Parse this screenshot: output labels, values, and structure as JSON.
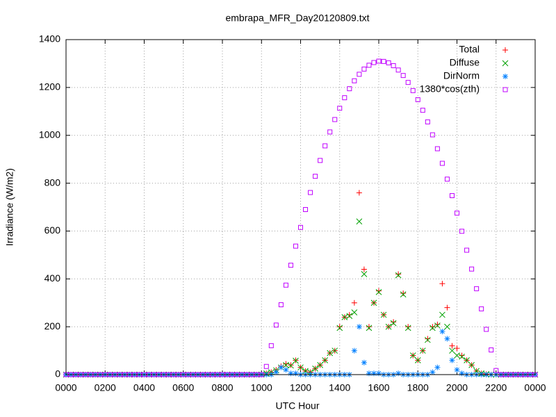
{
  "chart_data": {
    "type": "scatter",
    "title": "embrapa_MFR_Day20120809.txt",
    "xlabel": "UTC Hour",
    "ylabel": "Irradiance (W/m2)",
    "xlim": [
      0,
      24
    ],
    "ylim": [
      0,
      1400
    ],
    "xticks": [
      {
        "value": 0,
        "label": "0000"
      },
      {
        "value": 2,
        "label": "0200"
      },
      {
        "value": 4,
        "label": "0400"
      },
      {
        "value": 6,
        "label": "0600"
      },
      {
        "value": 8,
        "label": "0800"
      },
      {
        "value": 10,
        "label": "1000"
      },
      {
        "value": 12,
        "label": "1200"
      },
      {
        "value": 14,
        "label": "1400"
      },
      {
        "value": 16,
        "label": "1600"
      },
      {
        "value": 18,
        "label": "1800"
      },
      {
        "value": 20,
        "label": "2000"
      },
      {
        "value": 22,
        "label": "2200"
      },
      {
        "value": 24,
        "label": "0000"
      }
    ],
    "yticks": [
      0,
      200,
      400,
      600,
      800,
      1000,
      1200,
      1400
    ],
    "grid": true,
    "legend": "top-right",
    "x": [
      0,
      0.25,
      0.5,
      0.75,
      1,
      1.25,
      1.5,
      1.75,
      2,
      2.25,
      2.5,
      2.75,
      3,
      3.25,
      3.5,
      3.75,
      4,
      4.25,
      4.5,
      4.75,
      5,
      5.25,
      5.5,
      5.75,
      6,
      6.25,
      6.5,
      6.75,
      7,
      7.25,
      7.5,
      7.75,
      8,
      8.25,
      8.5,
      8.75,
      9,
      9.25,
      9.5,
      9.75,
      10,
      10.25,
      10.5,
      10.75,
      11,
      11.25,
      11.5,
      11.75,
      12,
      12.25,
      12.5,
      12.75,
      13,
      13.25,
      13.5,
      13.75,
      14,
      14.25,
      14.5,
      14.75,
      15,
      15.25,
      15.5,
      15.75,
      16,
      16.25,
      16.5,
      16.75,
      17,
      17.25,
      17.5,
      17.75,
      18,
      18.25,
      18.5,
      18.75,
      19,
      19.25,
      19.5,
      19.75,
      20,
      20.25,
      20.5,
      20.75,
      21,
      21.25,
      21.5,
      21.75,
      22,
      22.25,
      22.5,
      22.75,
      23,
      23.25,
      23.5,
      23.75,
      24
    ],
    "series": [
      {
        "name": "Total",
        "color": "#ff0000",
        "marker": "plus",
        "values": [
          0,
          0,
          0,
          0,
          0,
          0,
          0,
          0,
          0,
          0,
          0,
          0,
          0,
          0,
          0,
          0,
          0,
          0,
          0,
          0,
          0,
          0,
          0,
          0,
          0,
          0,
          0,
          0,
          0,
          0,
          0,
          0,
          0,
          0,
          0,
          0,
          0,
          0,
          0,
          0,
          0,
          5,
          10,
          20,
          35,
          45,
          40,
          60,
          30,
          15,
          10,
          25,
          40,
          60,
          90,
          100,
          200,
          240,
          250,
          300,
          760,
          440,
          200,
          300,
          350,
          250,
          200,
          220,
          420,
          340,
          200,
          80,
          60,
          100,
          150,
          200,
          210,
          380,
          280,
          120,
          110,
          80,
          60,
          40,
          15,
          5,
          2,
          0,
          0,
          0,
          0,
          0,
          0,
          0,
          0,
          0,
          0
        ]
      },
      {
        "name": "Diffuse",
        "color": "#00a000",
        "marker": "cross",
        "values": [
          0,
          0,
          0,
          0,
          0,
          0,
          0,
          0,
          0,
          0,
          0,
          0,
          0,
          0,
          0,
          0,
          0,
          0,
          0,
          0,
          0,
          0,
          0,
          0,
          0,
          0,
          0,
          0,
          0,
          0,
          0,
          0,
          0,
          0,
          0,
          0,
          0,
          0,
          0,
          0,
          0,
          5,
          10,
          18,
          30,
          40,
          38,
          58,
          30,
          15,
          10,
          25,
          40,
          60,
          90,
          100,
          195,
          240,
          245,
          260,
          640,
          420,
          195,
          300,
          345,
          250,
          200,
          215,
          415,
          335,
          195,
          80,
          60,
          100,
          145,
          195,
          205,
          250,
          200,
          100,
          80,
          75,
          60,
          40,
          15,
          5,
          2,
          0,
          0,
          0,
          0,
          0,
          0,
          0,
          0,
          0,
          0
        ]
      },
      {
        "name": "DirNorm",
        "color": "#0080ff",
        "marker": "star",
        "values": [
          0,
          0,
          0,
          0,
          0,
          0,
          0,
          0,
          0,
          0,
          0,
          0,
          0,
          0,
          0,
          0,
          0,
          0,
          0,
          0,
          0,
          0,
          0,
          0,
          0,
          0,
          0,
          0,
          0,
          0,
          0,
          0,
          0,
          0,
          0,
          0,
          0,
          0,
          0,
          0,
          0,
          0,
          0,
          10,
          30,
          20,
          5,
          5,
          0,
          0,
          0,
          0,
          0,
          0,
          0,
          0,
          0,
          0,
          0,
          100,
          200,
          50,
          5,
          5,
          5,
          0,
          0,
          0,
          5,
          0,
          0,
          0,
          0,
          0,
          0,
          10,
          30,
          180,
          150,
          60,
          20,
          5,
          0,
          0,
          0,
          0,
          0,
          0,
          0,
          0,
          0,
          0,
          0,
          0,
          0,
          0,
          0
        ]
      },
      {
        "name": "1380*cos(zth)",
        "color": "#c000ff",
        "marker": "square",
        "values": [
          0,
          0,
          0,
          0,
          0,
          0,
          0,
          0,
          0,
          0,
          0,
          0,
          0,
          0,
          0,
          0,
          0,
          0,
          0,
          0,
          0,
          0,
          0,
          0,
          0,
          0,
          0,
          0,
          0,
          0,
          0,
          0,
          0,
          0,
          0,
          0,
          0,
          0,
          0,
          0,
          0,
          34,
          121,
          207,
          292,
          374,
          457,
          537,
          615,
          690,
          761,
          829,
          895,
          956,
          1014,
          1066,
          1113,
          1157,
          1195,
          1228,
          1255,
          1277,
          1293,
          1304,
          1310,
          1309,
          1303,
          1291,
          1273,
          1250,
          1221,
          1187,
          1149,
          1105,
          1056,
          1002,
          944,
          883,
          817,
          748,
          675,
          599,
          520,
          441,
          359,
          275,
          189,
          103,
          17,
          0,
          0,
          0,
          0,
          0,
          0,
          0,
          0
        ]
      }
    ]
  }
}
